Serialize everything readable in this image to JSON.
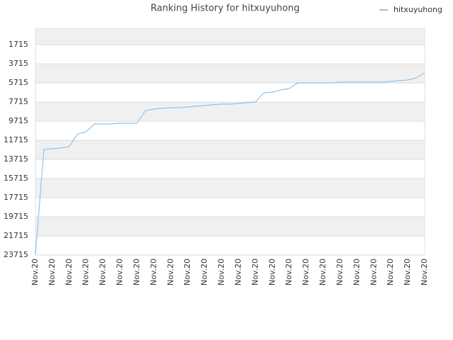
{
  "chart_data": {
    "type": "line",
    "title": "Ranking History for hitxuyuhong",
    "categories": [
      "Nov.20",
      null,
      "Nov.20",
      null,
      "Nov.20",
      null,
      "Nov.20",
      null,
      "Nov.20",
      null,
      "Nov.20",
      null,
      "Nov.20",
      null,
      "Nov.20",
      null,
      "Nov.20",
      null,
      "Nov.20",
      null,
      "Nov.20",
      null,
      "Nov.20",
      null,
      "Nov.20",
      null,
      "Nov.20",
      null,
      "Nov.20",
      null,
      "Nov.20",
      null,
      "Nov.20",
      null,
      "Nov.20",
      null,
      "Nov.20",
      null,
      "Nov.20",
      null,
      "Nov.20",
      null,
      "Nov.20",
      null,
      "Nov.20",
      null,
      "Nov.20"
    ],
    "series": [
      {
        "name": "hitxuyuhong",
        "color": "#8fc3ee",
        "values": [
          23715,
          12670,
          12600,
          12520,
          12370,
          11040,
          10820,
          10000,
          10000,
          10000,
          9930,
          9930,
          9930,
          8600,
          8450,
          8370,
          8300,
          8300,
          8225,
          8150,
          8075,
          8000,
          7930,
          7930,
          7855,
          7780,
          7710,
          6745,
          6670,
          6450,
          6300,
          5710,
          5710,
          5710,
          5710,
          5710,
          5630,
          5630,
          5630,
          5630,
          5630,
          5630,
          5560,
          5480,
          5410,
          5190,
          4670
        ]
      }
    ],
    "ylim": [
      23715,
      0
    ],
    "yticks": [
      1715,
      3715,
      5715,
      7715,
      9715,
      11715,
      13715,
      15715,
      17715,
      19715,
      21715,
      23715
    ],
    "grid": true,
    "legend": "top-right"
  }
}
